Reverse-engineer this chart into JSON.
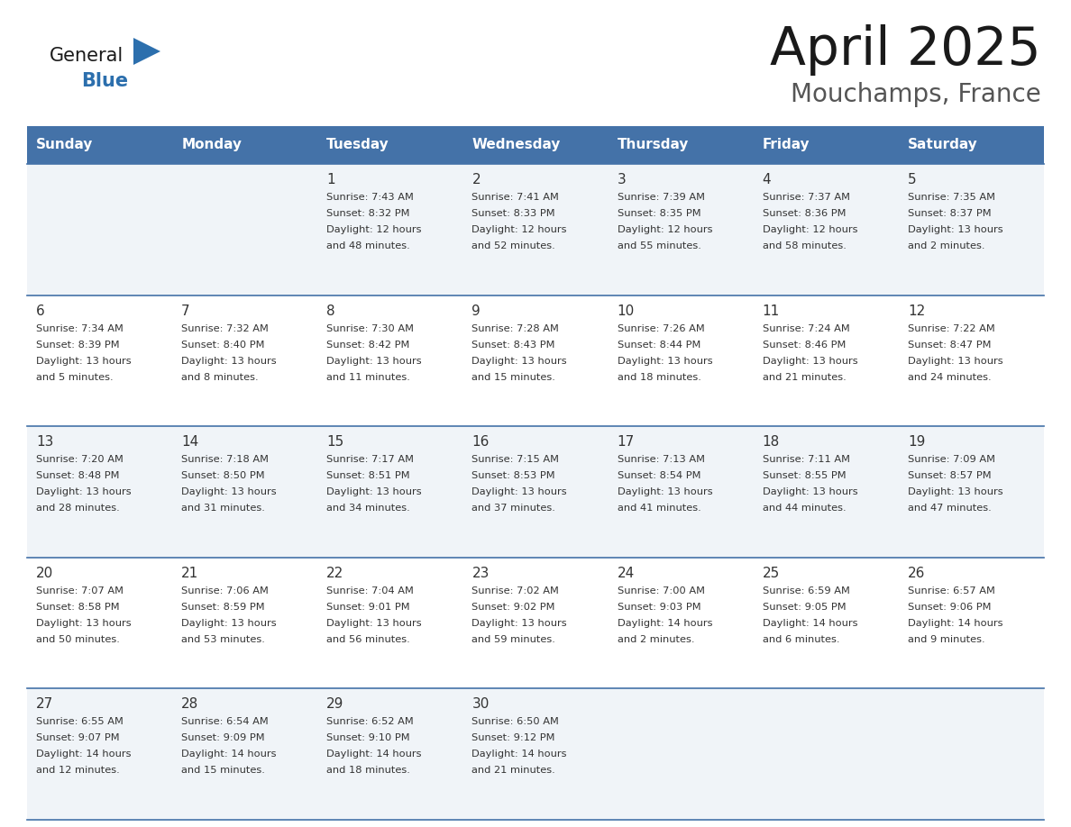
{
  "title": "April 2025",
  "subtitle": "Mouchamps, France",
  "header_bg": "#4472a8",
  "header_text": "#ffffff",
  "border_color": "#4472a8",
  "text_color": "#333333",
  "days_of_week": [
    "Sunday",
    "Monday",
    "Tuesday",
    "Wednesday",
    "Thursday",
    "Friday",
    "Saturday"
  ],
  "weeks": [
    [
      {
        "day": "",
        "sunrise": "",
        "sunset": "",
        "daylight": ""
      },
      {
        "day": "",
        "sunrise": "",
        "sunset": "",
        "daylight": ""
      },
      {
        "day": "1",
        "sunrise": "Sunrise: 7:43 AM",
        "sunset": "Sunset: 8:32 PM",
        "daylight": "Daylight: 12 hours\nand 48 minutes."
      },
      {
        "day": "2",
        "sunrise": "Sunrise: 7:41 AM",
        "sunset": "Sunset: 8:33 PM",
        "daylight": "Daylight: 12 hours\nand 52 minutes."
      },
      {
        "day": "3",
        "sunrise": "Sunrise: 7:39 AM",
        "sunset": "Sunset: 8:35 PM",
        "daylight": "Daylight: 12 hours\nand 55 minutes."
      },
      {
        "day": "4",
        "sunrise": "Sunrise: 7:37 AM",
        "sunset": "Sunset: 8:36 PM",
        "daylight": "Daylight: 12 hours\nand 58 minutes."
      },
      {
        "day": "5",
        "sunrise": "Sunrise: 7:35 AM",
        "sunset": "Sunset: 8:37 PM",
        "daylight": "Daylight: 13 hours\nand 2 minutes."
      }
    ],
    [
      {
        "day": "6",
        "sunrise": "Sunrise: 7:34 AM",
        "sunset": "Sunset: 8:39 PM",
        "daylight": "Daylight: 13 hours\nand 5 minutes."
      },
      {
        "day": "7",
        "sunrise": "Sunrise: 7:32 AM",
        "sunset": "Sunset: 8:40 PM",
        "daylight": "Daylight: 13 hours\nand 8 minutes."
      },
      {
        "day": "8",
        "sunrise": "Sunrise: 7:30 AM",
        "sunset": "Sunset: 8:42 PM",
        "daylight": "Daylight: 13 hours\nand 11 minutes."
      },
      {
        "day": "9",
        "sunrise": "Sunrise: 7:28 AM",
        "sunset": "Sunset: 8:43 PM",
        "daylight": "Daylight: 13 hours\nand 15 minutes."
      },
      {
        "day": "10",
        "sunrise": "Sunrise: 7:26 AM",
        "sunset": "Sunset: 8:44 PM",
        "daylight": "Daylight: 13 hours\nand 18 minutes."
      },
      {
        "day": "11",
        "sunrise": "Sunrise: 7:24 AM",
        "sunset": "Sunset: 8:46 PM",
        "daylight": "Daylight: 13 hours\nand 21 minutes."
      },
      {
        "day": "12",
        "sunrise": "Sunrise: 7:22 AM",
        "sunset": "Sunset: 8:47 PM",
        "daylight": "Daylight: 13 hours\nand 24 minutes."
      }
    ],
    [
      {
        "day": "13",
        "sunrise": "Sunrise: 7:20 AM",
        "sunset": "Sunset: 8:48 PM",
        "daylight": "Daylight: 13 hours\nand 28 minutes."
      },
      {
        "day": "14",
        "sunrise": "Sunrise: 7:18 AM",
        "sunset": "Sunset: 8:50 PM",
        "daylight": "Daylight: 13 hours\nand 31 minutes."
      },
      {
        "day": "15",
        "sunrise": "Sunrise: 7:17 AM",
        "sunset": "Sunset: 8:51 PM",
        "daylight": "Daylight: 13 hours\nand 34 minutes."
      },
      {
        "day": "16",
        "sunrise": "Sunrise: 7:15 AM",
        "sunset": "Sunset: 8:53 PM",
        "daylight": "Daylight: 13 hours\nand 37 minutes."
      },
      {
        "day": "17",
        "sunrise": "Sunrise: 7:13 AM",
        "sunset": "Sunset: 8:54 PM",
        "daylight": "Daylight: 13 hours\nand 41 minutes."
      },
      {
        "day": "18",
        "sunrise": "Sunrise: 7:11 AM",
        "sunset": "Sunset: 8:55 PM",
        "daylight": "Daylight: 13 hours\nand 44 minutes."
      },
      {
        "day": "19",
        "sunrise": "Sunrise: 7:09 AM",
        "sunset": "Sunset: 8:57 PM",
        "daylight": "Daylight: 13 hours\nand 47 minutes."
      }
    ],
    [
      {
        "day": "20",
        "sunrise": "Sunrise: 7:07 AM",
        "sunset": "Sunset: 8:58 PM",
        "daylight": "Daylight: 13 hours\nand 50 minutes."
      },
      {
        "day": "21",
        "sunrise": "Sunrise: 7:06 AM",
        "sunset": "Sunset: 8:59 PM",
        "daylight": "Daylight: 13 hours\nand 53 minutes."
      },
      {
        "day": "22",
        "sunrise": "Sunrise: 7:04 AM",
        "sunset": "Sunset: 9:01 PM",
        "daylight": "Daylight: 13 hours\nand 56 minutes."
      },
      {
        "day": "23",
        "sunrise": "Sunrise: 7:02 AM",
        "sunset": "Sunset: 9:02 PM",
        "daylight": "Daylight: 13 hours\nand 59 minutes."
      },
      {
        "day": "24",
        "sunrise": "Sunrise: 7:00 AM",
        "sunset": "Sunset: 9:03 PM",
        "daylight": "Daylight: 14 hours\nand 2 minutes."
      },
      {
        "day": "25",
        "sunrise": "Sunrise: 6:59 AM",
        "sunset": "Sunset: 9:05 PM",
        "daylight": "Daylight: 14 hours\nand 6 minutes."
      },
      {
        "day": "26",
        "sunrise": "Sunrise: 6:57 AM",
        "sunset": "Sunset: 9:06 PM",
        "daylight": "Daylight: 14 hours\nand 9 minutes."
      }
    ],
    [
      {
        "day": "27",
        "sunrise": "Sunrise: 6:55 AM",
        "sunset": "Sunset: 9:07 PM",
        "daylight": "Daylight: 14 hours\nand 12 minutes."
      },
      {
        "day": "28",
        "sunrise": "Sunrise: 6:54 AM",
        "sunset": "Sunset: 9:09 PM",
        "daylight": "Daylight: 14 hours\nand 15 minutes."
      },
      {
        "day": "29",
        "sunrise": "Sunrise: 6:52 AM",
        "sunset": "Sunset: 9:10 PM",
        "daylight": "Daylight: 14 hours\nand 18 minutes."
      },
      {
        "day": "30",
        "sunrise": "Sunrise: 6:50 AM",
        "sunset": "Sunset: 9:12 PM",
        "daylight": "Daylight: 14 hours\nand 21 minutes."
      },
      {
        "day": "",
        "sunrise": "",
        "sunset": "",
        "daylight": ""
      },
      {
        "day": "",
        "sunrise": "",
        "sunset": "",
        "daylight": ""
      },
      {
        "day": "",
        "sunrise": "",
        "sunset": "",
        "daylight": ""
      }
    ]
  ]
}
